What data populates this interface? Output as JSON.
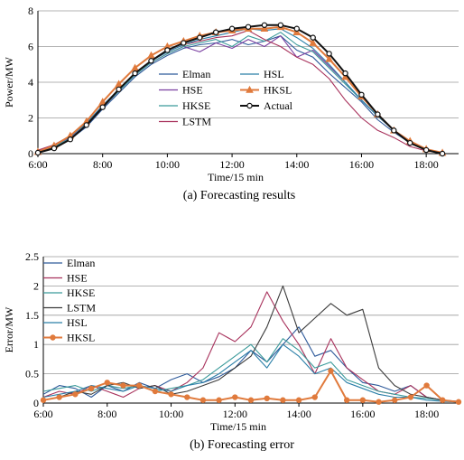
{
  "chart_data": [
    {
      "type": "line",
      "caption": "(a) Forecasting results",
      "xlabel": "Time/15 min",
      "ylabel": "Power/MW",
      "xlim": [
        "6:00",
        "19:00"
      ],
      "ylim": [
        0,
        8
      ],
      "x_ticks": [
        "6:00",
        "8:00",
        "10:00",
        "12:00",
        "14:00",
        "16:00",
        "18:00"
      ],
      "y_ticks": [
        "0",
        "2",
        "4",
        "6",
        "8"
      ],
      "grid": "horizontal",
      "legend_position": "center",
      "legend_layout": "two-column",
      "series": [
        {
          "name": "Elman",
          "color": "#2e5a9a",
          "marker": "none",
          "x": [
            "6:00",
            "6:30",
            "7:00",
            "7:30",
            "8:00",
            "8:30",
            "9:00",
            "9:30",
            "10:00",
            "10:30",
            "11:00",
            "11:30",
            "12:00",
            "12:30",
            "13:00",
            "13:30",
            "14:00",
            "14:30",
            "15:00",
            "15:30",
            "16:00",
            "16:30",
            "17:00",
            "17:30",
            "18:00",
            "18:30"
          ],
          "values": [
            0.1,
            0.35,
            0.8,
            1.5,
            2.5,
            3.4,
            4.3,
            5.0,
            5.5,
            5.9,
            6.1,
            6.2,
            6.4,
            6.1,
            6.3,
            6.6,
            5.8,
            5.4,
            4.5,
            3.7,
            2.9,
            1.9,
            1.2,
            0.6,
            0.2,
            0.05
          ]
        },
        {
          "name": "HSE",
          "color": "#7a3fa0",
          "marker": "none",
          "x": [
            "6:00",
            "6:30",
            "7:00",
            "7:30",
            "8:00",
            "8:30",
            "9:00",
            "9:30",
            "10:00",
            "10:30",
            "11:00",
            "11:30",
            "12:00",
            "12:30",
            "13:00",
            "13:30",
            "14:00",
            "14:30",
            "15:00",
            "15:30",
            "16:00",
            "16:30",
            "17:00",
            "17:30",
            "18:00",
            "18:30"
          ],
          "values": [
            0.15,
            0.4,
            0.9,
            1.6,
            2.6,
            3.5,
            4.4,
            5.1,
            5.6,
            6.0,
            5.7,
            6.2,
            5.9,
            6.4,
            6.0,
            6.6,
            5.4,
            5.8,
            4.9,
            4.0,
            3.0,
            2.1,
            1.3,
            0.7,
            0.25,
            0.05
          ]
        },
        {
          "name": "HKSE",
          "color": "#3a9a9a",
          "marker": "none",
          "x": [
            "6:00",
            "6:30",
            "7:00",
            "7:30",
            "8:00",
            "8:30",
            "9:00",
            "9:30",
            "10:00",
            "10:30",
            "11:00",
            "11:30",
            "12:00",
            "12:30",
            "13:00",
            "13:30",
            "14:00",
            "14:30",
            "15:00",
            "15:30",
            "16:00",
            "16:30",
            "17:00",
            "17:30",
            "18:00",
            "18:30"
          ],
          "values": [
            0.12,
            0.4,
            0.85,
            1.6,
            2.6,
            3.5,
            4.4,
            5.1,
            5.6,
            6.0,
            6.2,
            6.4,
            6.0,
            6.6,
            6.3,
            6.8,
            6.1,
            5.7,
            4.8,
            3.9,
            3.0,
            2.1,
            1.3,
            0.7,
            0.25,
            0.05
          ]
        },
        {
          "name": "LSTM",
          "color": "#a8325c",
          "marker": "none",
          "x": [
            "6:00",
            "6:30",
            "7:00",
            "7:30",
            "8:00",
            "8:30",
            "9:00",
            "9:30",
            "10:00",
            "10:30",
            "11:00",
            "11:30",
            "12:00",
            "12:30",
            "13:00",
            "13:30",
            "14:00",
            "14:30",
            "15:00",
            "15:30",
            "16:00",
            "16:30",
            "17:00",
            "17:30",
            "18:00",
            "18:30"
          ],
          "values": [
            0.2,
            0.5,
            1.0,
            1.7,
            2.7,
            3.6,
            4.5,
            5.2,
            5.7,
            6.1,
            6.3,
            6.5,
            6.6,
            6.9,
            6.4,
            6.0,
            5.4,
            5.0,
            4.2,
            3.0,
            2.0,
            1.3,
            0.9,
            0.4,
            0.15,
            0.05
          ]
        },
        {
          "name": "HSL",
          "color": "#2a7fa8",
          "marker": "none",
          "x": [
            "6:00",
            "6:30",
            "7:00",
            "7:30",
            "8:00",
            "8:30",
            "9:00",
            "9:30",
            "10:00",
            "10:30",
            "11:00",
            "11:30",
            "12:00",
            "12:30",
            "13:00",
            "13:30",
            "14:00",
            "14:30",
            "15:00",
            "15:30",
            "16:00",
            "16:30",
            "17:00",
            "17:30",
            "18:00",
            "18:30"
          ],
          "values": [
            0.12,
            0.45,
            0.95,
            1.7,
            2.7,
            3.6,
            4.5,
            5.2,
            5.7,
            6.1,
            6.4,
            6.6,
            6.8,
            7.0,
            6.9,
            7.0,
            6.5,
            5.9,
            5.0,
            4.0,
            3.0,
            2.1,
            1.3,
            0.7,
            0.25,
            0.05
          ]
        },
        {
          "name": "HKSL",
          "color": "#e07a3c",
          "marker": "triangle",
          "x": [
            "6:00",
            "6:30",
            "7:00",
            "7:30",
            "8:00",
            "8:30",
            "9:00",
            "9:30",
            "10:00",
            "10:30",
            "11:00",
            "11:30",
            "12:00",
            "12:30",
            "13:00",
            "13:30",
            "14:00",
            "14:30",
            "15:00",
            "15:30",
            "16:00",
            "16:30",
            "17:00",
            "17:30",
            "18:00",
            "18:30"
          ],
          "values": [
            0.1,
            0.45,
            1.0,
            1.8,
            2.9,
            3.9,
            4.8,
            5.5,
            6.0,
            6.3,
            6.6,
            6.8,
            6.9,
            7.0,
            7.0,
            7.1,
            6.8,
            6.2,
            5.3,
            4.3,
            3.2,
            2.2,
            1.3,
            0.7,
            0.25,
            0.05
          ]
        },
        {
          "name": "Actual",
          "color": "#111111",
          "marker": "circle",
          "x": [
            "6:00",
            "6:30",
            "7:00",
            "7:30",
            "8:00",
            "8:30",
            "9:00",
            "9:30",
            "10:00",
            "10:30",
            "11:00",
            "11:30",
            "12:00",
            "12:30",
            "13:00",
            "13:30",
            "14:00",
            "14:30",
            "15:00",
            "15:30",
            "16:00",
            "16:30",
            "17:00",
            "17:30",
            "18:00",
            "18:30"
          ],
          "values": [
            0.05,
            0.3,
            0.8,
            1.6,
            2.6,
            3.6,
            4.5,
            5.2,
            5.8,
            6.2,
            6.5,
            6.8,
            7.0,
            7.1,
            7.2,
            7.2,
            7.0,
            6.5,
            5.6,
            4.5,
            3.3,
            2.2,
            1.3,
            0.6,
            0.2,
            0.0
          ]
        }
      ]
    },
    {
      "type": "line",
      "caption": "(b) Forecasting error",
      "xlabel": "Time/15 min",
      "ylabel": "Error/MW",
      "xlim": [
        "6:00",
        "19:00"
      ],
      "ylim": [
        0,
        2.5
      ],
      "x_ticks": [
        "6:00",
        "8:00",
        "10:00",
        "12:00",
        "14:00",
        "16:00",
        "18:00"
      ],
      "y_ticks": [
        "0",
        "0.5",
        "1",
        "1.5",
        "2",
        "2.5"
      ],
      "grid": "horizontal",
      "legend_position": "top-left",
      "series": [
        {
          "name": "Elman",
          "color": "#2e5a9a",
          "marker": "none",
          "x": [
            "6:00",
            "6:30",
            "7:00",
            "7:30",
            "8:00",
            "8:30",
            "9:00",
            "9:30",
            "10:00",
            "10:30",
            "11:00",
            "11:30",
            "12:00",
            "12:30",
            "13:00",
            "13:30",
            "14:00",
            "14:30",
            "15:00",
            "15:30",
            "16:00",
            "16:30",
            "17:00",
            "17:30",
            "18:00",
            "18:30",
            "19:00"
          ],
          "values": [
            0.15,
            0.3,
            0.25,
            0.1,
            0.3,
            0.2,
            0.35,
            0.25,
            0.4,
            0.5,
            0.35,
            0.45,
            0.6,
            0.9,
            0.7,
            1.0,
            1.3,
            0.8,
            0.9,
            0.6,
            0.35,
            0.3,
            0.2,
            0.3,
            0.1,
            0.05,
            0.03
          ]
        },
        {
          "name": "HSE",
          "color": "#a8325c",
          "marker": "none",
          "x": [
            "6:00",
            "6:30",
            "7:00",
            "7:30",
            "8:00",
            "8:30",
            "9:00",
            "9:30",
            "10:00",
            "10:30",
            "11:00",
            "11:30",
            "12:00",
            "12:30",
            "13:00",
            "13:30",
            "14:00",
            "14:30",
            "15:00",
            "15:30",
            "16:00",
            "16:30",
            "17:00",
            "17:30",
            "18:00",
            "18:30",
            "19:00"
          ],
          "values": [
            0.1,
            0.2,
            0.15,
            0.3,
            0.2,
            0.1,
            0.25,
            0.3,
            0.2,
            0.35,
            0.6,
            1.2,
            1.05,
            1.3,
            1.9,
            1.4,
            1.0,
            0.5,
            1.1,
            0.6,
            0.4,
            0.2,
            0.15,
            0.3,
            0.1,
            0.05,
            0.02
          ]
        },
        {
          "name": "HKSE",
          "color": "#3a9a9a",
          "marker": "none",
          "x": [
            "6:00",
            "6:30",
            "7:00",
            "7:30",
            "8:00",
            "8:30",
            "9:00",
            "9:30",
            "10:00",
            "10:30",
            "11:00",
            "11:30",
            "12:00",
            "12:30",
            "13:00",
            "13:30",
            "14:00",
            "14:30",
            "15:00",
            "15:30",
            "16:00",
            "16:30",
            "17:00",
            "17:30",
            "18:00",
            "18:30",
            "19:00"
          ],
          "values": [
            0.2,
            0.25,
            0.3,
            0.2,
            0.3,
            0.25,
            0.3,
            0.2,
            0.25,
            0.3,
            0.4,
            0.6,
            0.8,
            1.0,
            0.7,
            1.1,
            0.9,
            0.6,
            0.7,
            0.4,
            0.3,
            0.2,
            0.15,
            0.1,
            0.08,
            0.05,
            0.02
          ]
        },
        {
          "name": "LSTM",
          "color": "#3c3c3c",
          "marker": "none",
          "x": [
            "6:00",
            "6:30",
            "7:00",
            "7:30",
            "8:00",
            "8:30",
            "9:00",
            "9:30",
            "10:00",
            "10:30",
            "11:00",
            "11:30",
            "12:00",
            "12:30",
            "13:00",
            "13:30",
            "14:00",
            "14:30",
            "15:00",
            "15:30",
            "16:00",
            "16:30",
            "17:00",
            "17:30",
            "18:00",
            "18:30",
            "19:00"
          ],
          "values": [
            0.05,
            0.1,
            0.2,
            0.15,
            0.3,
            0.35,
            0.25,
            0.3,
            0.15,
            0.2,
            0.3,
            0.4,
            0.6,
            0.8,
            1.3,
            2.0,
            1.2,
            1.45,
            1.7,
            1.5,
            1.6,
            0.6,
            0.3,
            0.15,
            0.1,
            0.05,
            0.02
          ]
        },
        {
          "name": "HSL",
          "color": "#2a7fa8",
          "marker": "none",
          "x": [
            "6:00",
            "6:30",
            "7:00",
            "7:30",
            "8:00",
            "8:30",
            "9:00",
            "9:30",
            "10:00",
            "10:30",
            "11:00",
            "11:30",
            "12:00",
            "12:30",
            "13:00",
            "13:30",
            "14:00",
            "14:30",
            "15:00",
            "15:30",
            "16:00",
            "16:30",
            "17:00",
            "17:30",
            "18:00",
            "18:30",
            "19:00"
          ],
          "values": [
            0.1,
            0.15,
            0.2,
            0.3,
            0.25,
            0.2,
            0.3,
            0.25,
            0.2,
            0.3,
            0.35,
            0.5,
            0.7,
            0.9,
            0.6,
            1.0,
            0.8,
            0.5,
            0.6,
            0.35,
            0.25,
            0.15,
            0.1,
            0.1,
            0.05,
            0.03,
            0.02
          ]
        },
        {
          "name": "HKSL",
          "color": "#e07a3c",
          "marker": "circle",
          "x": [
            "6:00",
            "6:30",
            "7:00",
            "7:30",
            "8:00",
            "8:30",
            "9:00",
            "9:30",
            "10:00",
            "10:30",
            "11:00",
            "11:30",
            "12:00",
            "12:30",
            "13:00",
            "13:30",
            "14:00",
            "14:30",
            "15:00",
            "15:30",
            "16:00",
            "16:30",
            "17:00",
            "17:30",
            "18:00",
            "18:30",
            "19:00"
          ],
          "values": [
            0.05,
            0.1,
            0.15,
            0.25,
            0.35,
            0.3,
            0.3,
            0.2,
            0.15,
            0.1,
            0.05,
            0.05,
            0.1,
            0.05,
            0.08,
            0.05,
            0.05,
            0.1,
            0.55,
            0.05,
            0.05,
            0.02,
            0.05,
            0.1,
            0.3,
            0.05,
            0.02
          ]
        }
      ]
    }
  ]
}
